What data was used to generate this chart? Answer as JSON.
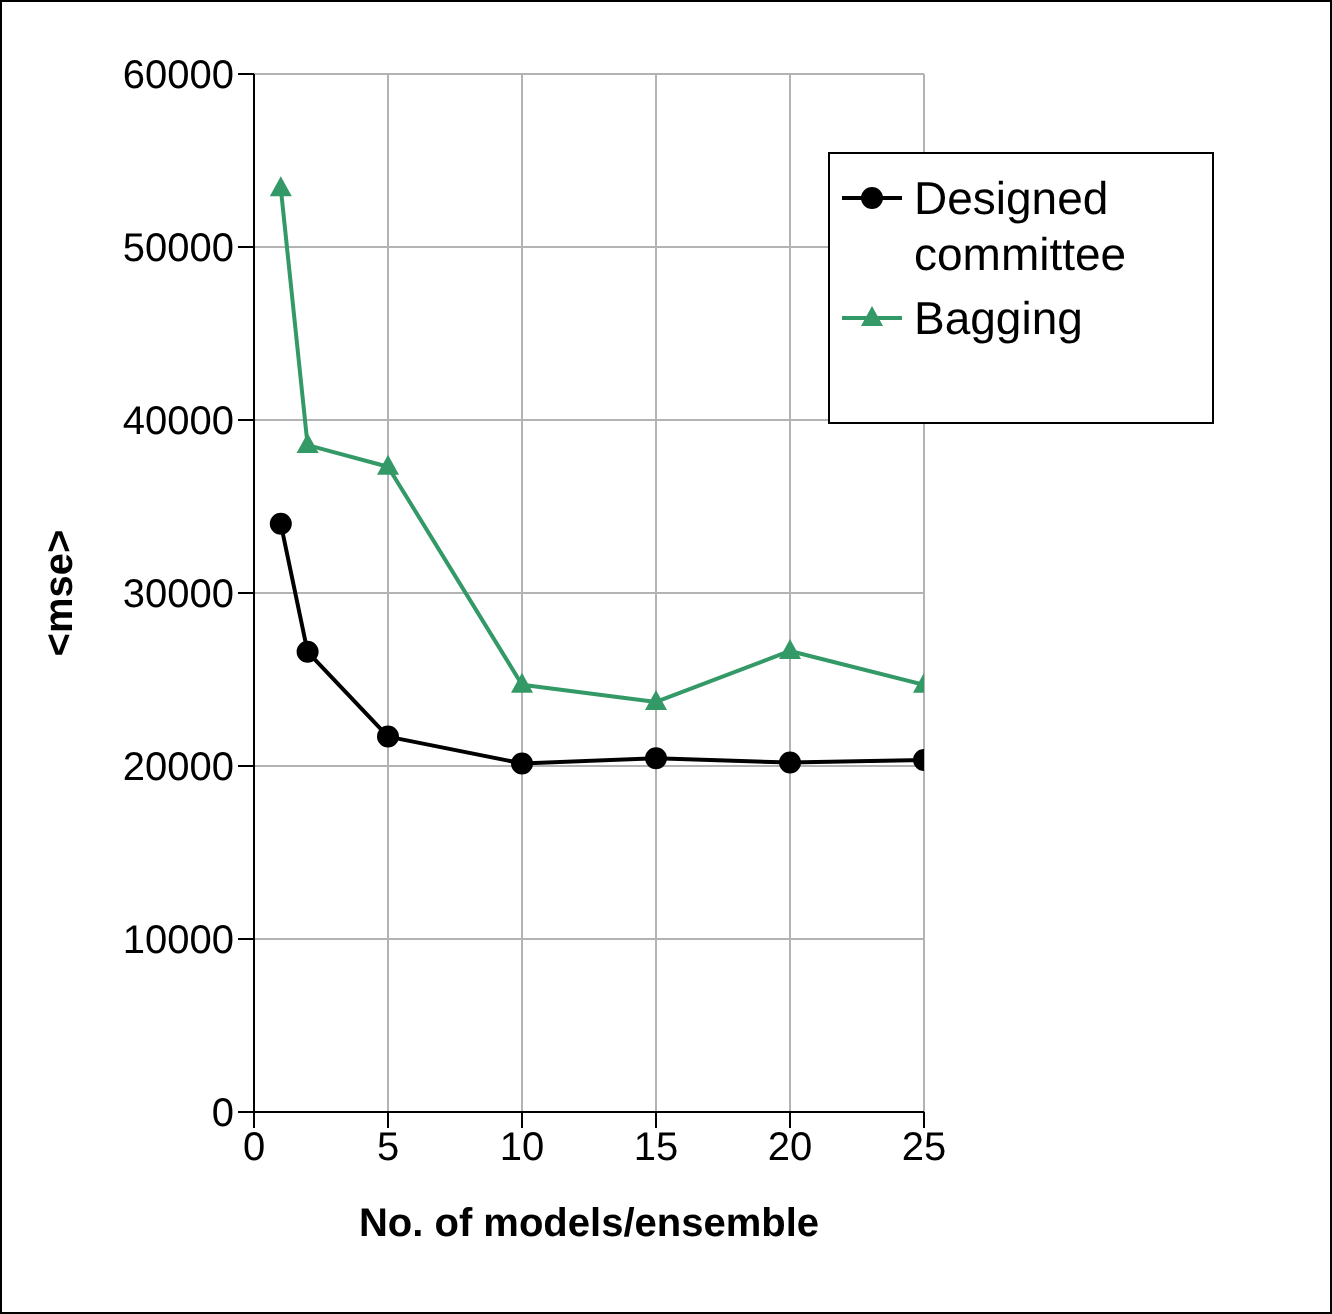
{
  "chart_data": {
    "type": "line",
    "xlabel": "No. of models/ensemble",
    "ylabel": "<mse>",
    "x": [
      1,
      2,
      5,
      10,
      15,
      20,
      25
    ],
    "series": [
      {
        "name": "Designed committee",
        "color": "#000000",
        "marker": "circle",
        "values": [
          34000,
          26600,
          21700,
          20150,
          20450,
          20200,
          20350
        ]
      },
      {
        "name": "Bagging",
        "color": "#339966",
        "marker": "triangle",
        "values": [
          53400,
          38550,
          37300,
          24700,
          23700,
          26650,
          24700
        ]
      }
    ],
    "xlim": [
      0,
      25
    ],
    "xticks": [
      0,
      5,
      10,
      15,
      20,
      25
    ],
    "ylim": [
      0,
      60000
    ],
    "yticks": [
      0,
      10000,
      20000,
      30000,
      40000,
      50000,
      60000
    ],
    "grid": true,
    "legend": "top right"
  }
}
